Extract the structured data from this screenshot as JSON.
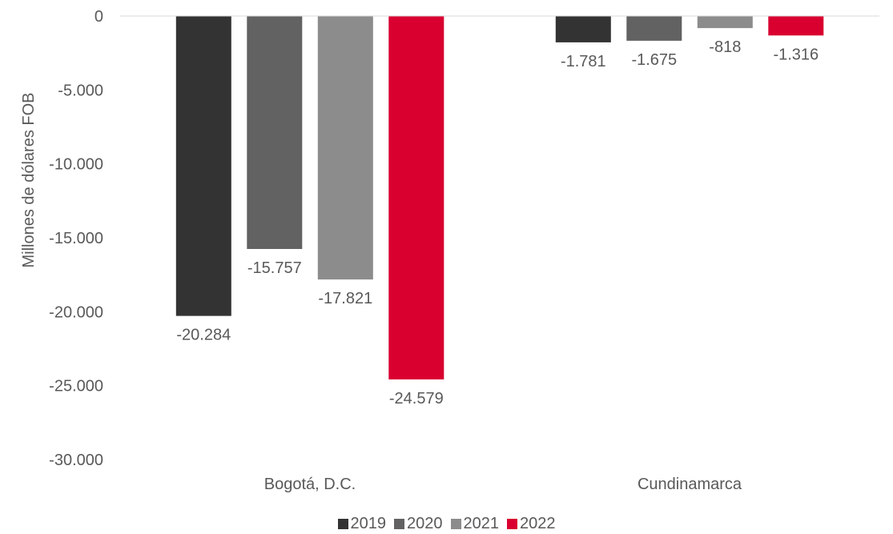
{
  "chart_data": {
    "type": "bar",
    "categories": [
      "Bogotá, D.C.",
      "Cundinamarca"
    ],
    "series": [
      {
        "name": "2019",
        "values": [
          -20284,
          -1781
        ],
        "labels": [
          "-20.284",
          "-1.781"
        ],
        "color": "#333333"
      },
      {
        "name": "2020",
        "values": [
          -15757,
          -1675
        ],
        "labels": [
          "-15.757",
          "-1.675"
        ],
        "color": "#626262"
      },
      {
        "name": "2021",
        "values": [
          -17821,
          -818
        ],
        "labels": [
          "-17.821",
          "-818"
        ],
        "color": "#8c8c8c"
      },
      {
        "name": "2022",
        "values": [
          -24579,
          -1316
        ],
        "labels": [
          "-24.579",
          "-1.316"
        ],
        "color": "#d90030"
      }
    ],
    "ylabel": "Millones de dólares FOB",
    "xlabel": "",
    "ylim": [
      -30000,
      0
    ],
    "yticks": [
      0,
      -5000,
      -10000,
      -15000,
      -20000,
      -25000,
      -30000
    ],
    "ytick_labels": [
      "0",
      "-5.000",
      "-10.000",
      "-15.000",
      "-20.000",
      "-25.000",
      "-30.000"
    ],
    "grid": false,
    "legend_position": "bottom"
  }
}
